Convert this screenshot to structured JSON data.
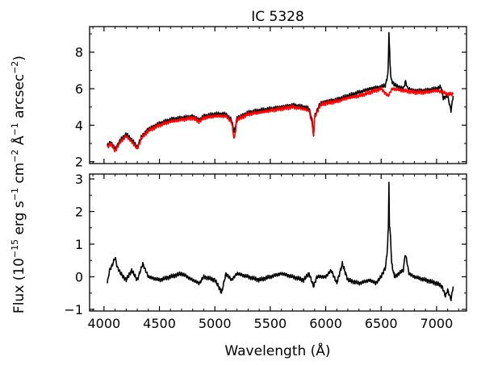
{
  "figure": {
    "title": "IC 5328",
    "ylabel_parts": [
      "Flux (10",
      "−15",
      " erg s",
      "−1",
      " cm",
      "−2",
      " Å",
      "−1",
      " arcsec",
      "−2",
      ")"
    ],
    "xlabel": "Wavelength (Å)"
  },
  "chart_data": [
    {
      "type": "line",
      "panel": "top",
      "title": "IC 5328",
      "xlabel": "",
      "ylabel": "Flux (10^-15 erg s^-1 cm^-2 Å^-1 arcsec^-2)",
      "xlim": [
        3870,
        7270
      ],
      "ylim": [
        1.9,
        9.4
      ],
      "xticks": [
        4000,
        4500,
        5000,
        5500,
        6000,
        6500,
        7000
      ],
      "yticks": [
        2,
        4,
        6,
        8
      ],
      "ytick_labels": [
        "2",
        "4",
        "6",
        "8"
      ],
      "grid": false,
      "series": [
        {
          "color": "#000000",
          "points": [
            [
              4030,
              2.9
            ],
            [
              4060,
              3.1
            ],
            [
              4100,
              2.7
            ],
            [
              4150,
              3.2
            ],
            [
              4200,
              3.5
            ],
            [
              4250,
              3.2
            ],
            [
              4300,
              2.8
            ],
            [
              4340,
              3.4
            ],
            [
              4400,
              3.8
            ],
            [
              4500,
              4.1
            ],
            [
              4600,
              4.3
            ],
            [
              4700,
              4.4
            ],
            [
              4800,
              4.5
            ],
            [
              4860,
              4.3
            ],
            [
              4900,
              4.5
            ],
            [
              5000,
              4.6
            ],
            [
              5100,
              4.6
            ],
            [
              5150,
              4.3
            ],
            [
              5175,
              3.6
            ],
            [
              5200,
              4.4
            ],
            [
              5300,
              4.7
            ],
            [
              5400,
              4.8
            ],
            [
              5500,
              4.9
            ],
            [
              5600,
              5.0
            ],
            [
              5700,
              5.1
            ],
            [
              5800,
              5.0
            ],
            [
              5850,
              4.9
            ],
            [
              5880,
              4.2
            ],
            [
              5890,
              3.3
            ],
            [
              5900,
              4.5
            ],
            [
              5950,
              5.2
            ],
            [
              6000,
              5.3
            ],
            [
              6100,
              5.4
            ],
            [
              6200,
              5.6
            ],
            [
              6300,
              5.8
            ],
            [
              6400,
              6.0
            ],
            [
              6500,
              6.1
            ],
            [
              6540,
              6.2
            ],
            [
              6560,
              6.8
            ],
            [
              6563,
              7.0
            ],
            [
              6570,
              9.1
            ],
            [
              6580,
              7.4
            ],
            [
              6590,
              6.5
            ],
            [
              6620,
              6.2
            ],
            [
              6700,
              6.0
            ],
            [
              6720,
              6.4
            ],
            [
              6740,
              6.0
            ],
            [
              6800,
              5.9
            ],
            [
              6900,
              5.9
            ],
            [
              7000,
              6.0
            ],
            [
              7040,
              6.1
            ],
            [
              7060,
              5.5
            ],
            [
              7100,
              5.6
            ],
            [
              7130,
              4.8
            ],
            [
              7150,
              5.6
            ]
          ]
        },
        {
          "color": "#ff0000",
          "points": [
            [
              4030,
              2.8
            ],
            [
              4060,
              3.0
            ],
            [
              4100,
              2.6
            ],
            [
              4150,
              3.1
            ],
            [
              4200,
              3.4
            ],
            [
              4250,
              3.1
            ],
            [
              4300,
              2.7
            ],
            [
              4340,
              3.3
            ],
            [
              4400,
              3.7
            ],
            [
              4500,
              4.0
            ],
            [
              4600,
              4.2
            ],
            [
              4700,
              4.3
            ],
            [
              4800,
              4.4
            ],
            [
              4860,
              4.2
            ],
            [
              4900,
              4.4
            ],
            [
              5000,
              4.5
            ],
            [
              5100,
              4.5
            ],
            [
              5150,
              4.2
            ],
            [
              5175,
              3.2
            ],
            [
              5200,
              4.3
            ],
            [
              5300,
              4.6
            ],
            [
              5400,
              4.7
            ],
            [
              5500,
              4.8
            ],
            [
              5600,
              4.9
            ],
            [
              5700,
              5.0
            ],
            [
              5800,
              4.9
            ],
            [
              5850,
              4.8
            ],
            [
              5880,
              4.0
            ],
            [
              5890,
              3.4
            ],
            [
              5900,
              4.4
            ],
            [
              5950,
              5.1
            ],
            [
              6000,
              5.2
            ],
            [
              6100,
              5.3
            ],
            [
              6200,
              5.5
            ],
            [
              6300,
              5.6
            ],
            [
              6400,
              5.8
            ],
            [
              6500,
              6.0
            ],
            [
              6563,
              5.6
            ],
            [
              6600,
              6.0
            ],
            [
              6700,
              5.9
            ],
            [
              6800,
              5.8
            ],
            [
              6900,
              5.8
            ],
            [
              7000,
              5.9
            ],
            [
              7060,
              5.8
            ],
            [
              7100,
              5.7
            ],
            [
              7150,
              5.7
            ]
          ]
        }
      ]
    },
    {
      "type": "line",
      "panel": "bottom",
      "xlabel": "Wavelength (Å)",
      "ylabel": "Flux (10^-15 erg s^-1 cm^-2 Å^-1 arcsec^-2)",
      "xlim": [
        3870,
        7270
      ],
      "ylim": [
        -1.05,
        3.15
      ],
      "xticks": [
        4000,
        4500,
        5000,
        5500,
        6000,
        6500,
        7000
      ],
      "xtick_labels": [
        "4000",
        "4500",
        "5000",
        "5500",
        "6000",
        "6500",
        "7000"
      ],
      "yticks": [
        -1,
        0,
        1,
        2,
        3
      ],
      "ytick_labels": [
        "−1",
        "0",
        "1",
        "2",
        "3"
      ],
      "grid": false,
      "series": [
        {
          "color": "#000000",
          "points": [
            [
              4030,
              -0.2
            ],
            [
              4050,
              0.2
            ],
            [
              4080,
              0.4
            ],
            [
              4100,
              0.6
            ],
            [
              4120,
              0.3
            ],
            [
              4150,
              0.1
            ],
            [
              4200,
              -0.1
            ],
            [
              4250,
              0.2
            ],
            [
              4300,
              -0.1
            ],
            [
              4350,
              0.4
            ],
            [
              4400,
              0.0
            ],
            [
              4500,
              -0.1
            ],
            [
              4600,
              0.0
            ],
            [
              4700,
              0.1
            ],
            [
              4800,
              -0.1
            ],
            [
              4860,
              -0.2
            ],
            [
              4900,
              0.0
            ],
            [
              5000,
              -0.1
            ],
            [
              5050,
              -0.4
            ],
            [
              5060,
              -0.5
            ],
            [
              5100,
              0.1
            ],
            [
              5150,
              -0.1
            ],
            [
              5200,
              0.1
            ],
            [
              5300,
              0.0
            ],
            [
              5400,
              -0.1
            ],
            [
              5500,
              0.0
            ],
            [
              5600,
              0.1
            ],
            [
              5700,
              0.0
            ],
            [
              5800,
              -0.1
            ],
            [
              5850,
              0.1
            ],
            [
              5890,
              -0.3
            ],
            [
              5920,
              0.0
            ],
            [
              6000,
              0.0
            ],
            [
              6050,
              0.2
            ],
            [
              6100,
              -0.2
            ],
            [
              6150,
              0.4
            ],
            [
              6200,
              -0.1
            ],
            [
              6300,
              -0.2
            ],
            [
              6400,
              -0.1
            ],
            [
              6450,
              -0.2
            ],
            [
              6500,
              0.0
            ],
            [
              6540,
              0.3
            ],
            [
              6555,
              0.8
            ],
            [
              6565,
              1.5
            ],
            [
              6570,
              2.9
            ],
            [
              6575,
              1.6
            ],
            [
              6585,
              1.2
            ],
            [
              6595,
              0.4
            ],
            [
              6620,
              0.0
            ],
            [
              6700,
              0.2
            ],
            [
              6717,
              0.7
            ],
            [
              6731,
              0.5
            ],
            [
              6750,
              0.1
            ],
            [
              6800,
              0.0
            ],
            [
              6900,
              -0.1
            ],
            [
              7000,
              -0.2
            ],
            [
              7050,
              -0.3
            ],
            [
              7080,
              -0.6
            ],
            [
              7100,
              -0.4
            ],
            [
              7130,
              -0.7
            ],
            [
              7150,
              -0.3
            ]
          ]
        }
      ]
    }
  ]
}
